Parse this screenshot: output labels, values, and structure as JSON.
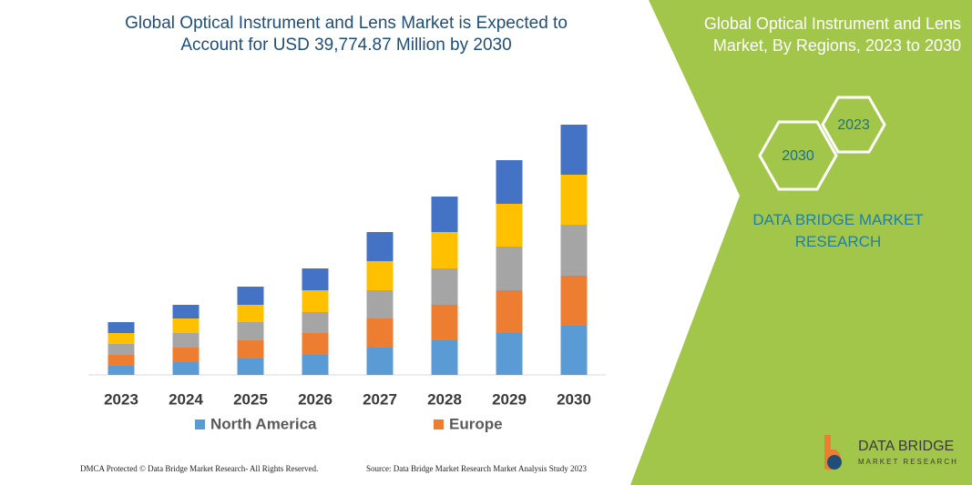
{
  "chart_data": {
    "type": "bar",
    "stacked": true,
    "title": "Global Optical Instrument and Lens Market is Expected to Account for USD 39,774.87 Million by 2030",
    "categories": [
      "2023",
      "2024",
      "2025",
      "2026",
      "2027",
      "2028",
      "2029",
      "2030"
    ],
    "series": [
      {
        "name": "North America",
        "color": "#5b9bd5",
        "values": [
          10,
          14,
          18,
          22,
          30,
          38,
          46,
          54
        ]
      },
      {
        "name": "Europe",
        "color": "#ed7d31",
        "values": [
          12,
          16,
          20,
          24,
          32,
          39,
          47,
          55
        ]
      },
      {
        "name": null,
        "color": "#a5a5a5",
        "values": [
          12,
          16,
          20,
          23,
          31,
          40,
          48,
          56
        ]
      },
      {
        "name": null,
        "color": "#ffc000",
        "values": [
          12,
          16,
          19,
          24,
          32,
          40,
          47,
          55
        ]
      },
      {
        "name": null,
        "color": "#4472c4",
        "values": [
          12,
          15,
          20,
          24,
          32,
          39,
          48,
          55
        ]
      }
    ]
  },
  "side_panel": {
    "title": "Global Optical Instrument and Lens Market, By Regions, 2023 to 2030",
    "hexagons": [
      "2030",
      "2023"
    ],
    "brand": "DATA BRIDGE MARKET RESEARCH"
  },
  "logo": {
    "name": "DATA BRIDGE",
    "tagline": "MARKET RESEARCH"
  },
  "footer": {
    "left": "DMCA Protected © Data Bridge Market Research- All Rights Reserved.",
    "right": "Source: Data Bridge Market Research Market Analysis Study 2023"
  }
}
